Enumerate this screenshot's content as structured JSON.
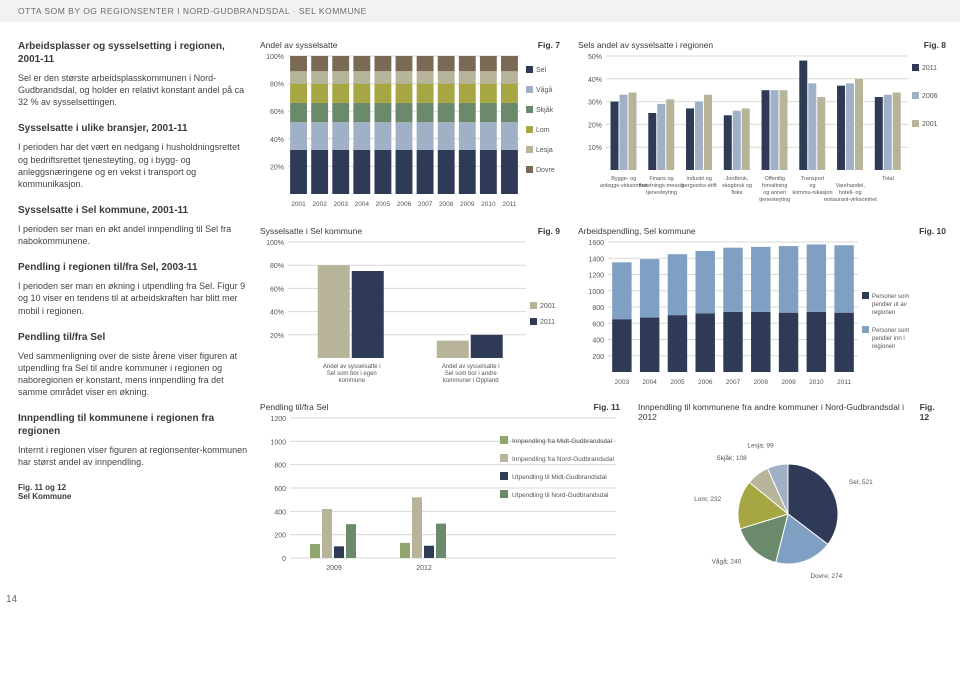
{
  "topbar": "OTTA SOM BY OG REGIONSENTER I NORD-GUDBRANDSDAL · SEL KOMMUNE",
  "pagenum": "14",
  "left": {
    "h1": "Arbeidsplasser og sysselsetting i regionen, 2001-11",
    "p1": "Sel er den største arbeidsplasskommunen i Nord-Gudbrandsdal, og holder en relativt konstant andel på ca 32 % av sysselsettingen.",
    "h2": "Sysselsatte i ulike bransjer, 2001-11",
    "p2": "I perioden har det vært en nedgang i husholdningsrettet og bedriftsrettet tjenesteyting, og i bygg- og anleggsnæringene og en vekst i transport og kommunikasjon.",
    "h3": "Sysselsatte i Sel kommune, 2001-11",
    "p3": "I perioden ser man en økt andel innpendling til Sel fra nabokommunene.",
    "h4": "Pendling i regionen til/fra Sel, 2003-11",
    "p4": "I perioden ser man en økning i utpendling fra Sel. Figur 9 og 10 viser en tendens til at arbeidskraften har blitt mer mobil i regionen.",
    "h5": "Pendling til/fra Sel",
    "p5": "Ved sammenligning over de siste årene viser figuren at utpendling fra Sel til andre kommuner i regionen og naboregionen er konstant, mens innpendling fra det samme området viser en økning.",
    "h6": "Innpendling til kommunene i regionen fra regionen",
    "p6": "Internt i regionen viser figuren at regionsenter-kommunen har størst andel av innpendling.",
    "foot": "Fig. 11 og 12\nSel Kommune"
  },
  "colors": {
    "sel": "#2f3a57",
    "vaga": "#9fb0c7",
    "skjak": "#6b8a6b",
    "lom": "#a6a642",
    "lesja": "#b7b49a",
    "dovre": "#7a6a53",
    "grid": "#d9d9d7",
    "y2011": "#2f3a57",
    "y2006": "#9fb0c7",
    "y2001": "#b7b49a",
    "pend_out": "#2f3a57",
    "pend_in": "#7fa0c2",
    "bar_in_midt": "#8fa66f",
    "bar_in_nord": "#b7b49a",
    "bar_out_midt": "#2f3a57",
    "bar_out_nord": "#6b8a6b"
  },
  "fig7": {
    "title": "Andel av sysselsatte",
    "fig": "Fig. 7",
    "years": [
      "2001",
      "2002",
      "2003",
      "2004",
      "2005",
      "2006",
      "2007",
      "2008",
      "2009",
      "2010",
      "2011"
    ],
    "yticks": [
      "20%",
      "40%",
      "60%",
      "80%",
      "100%"
    ],
    "legend": [
      "Sel",
      "Vågå",
      "Skjåk",
      "Lom",
      "Lesja",
      "Dovre"
    ],
    "stacks": [
      [
        32,
        20,
        14,
        14,
        9,
        11
      ],
      [
        32,
        20,
        14,
        14,
        9,
        11
      ],
      [
        32,
        20,
        14,
        14,
        9,
        11
      ],
      [
        32,
        20,
        14,
        14,
        9,
        11
      ],
      [
        32,
        20,
        14,
        14,
        9,
        11
      ],
      [
        32,
        20,
        14,
        14,
        9,
        11
      ],
      [
        32,
        20,
        14,
        14,
        9,
        11
      ],
      [
        32,
        20,
        14,
        14,
        9,
        11
      ],
      [
        32,
        20,
        14,
        14,
        9,
        11
      ],
      [
        32,
        20,
        14,
        14,
        9,
        11
      ],
      [
        32,
        20,
        14,
        14,
        9,
        11
      ]
    ]
  },
  "fig8": {
    "title": "Sels andel av sysselsatte i regionen",
    "fig": "Fig. 8",
    "cats": [
      "Bygge- og anleggs-virksomhet",
      "Finans og forretnings-messig tjenesteyting",
      "industri og bergverks-drift",
      "Jordbruk, skogbruk og fiske",
      "Offentlig forvaltning og annen tjenesteyting",
      "Transport og kommu-nikasjon",
      "Varehandel, hotell- og restaurant-virksomhet",
      "Total"
    ],
    "yticks": [
      "10%",
      "20%",
      "30%",
      "40%",
      "50%"
    ],
    "legend": [
      "2011",
      "2006",
      "2001"
    ],
    "series": {
      "2011": [
        30,
        25,
        27,
        24,
        35,
        48,
        37,
        32
      ],
      "2006": [
        33,
        29,
        30,
        26,
        35,
        38,
        38,
        33
      ],
      "2001": [
        34,
        31,
        33,
        27,
        35,
        32,
        40,
        34
      ]
    }
  },
  "fig9": {
    "title": "Sysselsatte i Sel kommune",
    "fig": "Fig. 9",
    "cats": [
      "Andel av sysselsatte i Sel som bor i egen kommune",
      "Andel av sysselsatte i Sel som bor i andre kommuner i Oppland"
    ],
    "yticks": [
      "20%",
      "40%",
      "60%",
      "80%",
      "100%"
    ],
    "legend": [
      "2001",
      "2011"
    ],
    "series": {
      "2001": [
        80,
        15
      ],
      "2011": [
        75,
        20
      ]
    }
  },
  "fig10": {
    "title": "Arbeidspendling, Sel kommune",
    "fig": "Fig. 10",
    "years": [
      "2003",
      "2004",
      "2005",
      "2006",
      "2007",
      "2008",
      "2009",
      "2010",
      "2011"
    ],
    "yticks": [
      "200",
      "400",
      "600",
      "800",
      "1000",
      "1200",
      "1400",
      "1600"
    ],
    "legend": [
      "Personer som pendler ut av regionen",
      "Personer som pendler inn i regionen"
    ],
    "stacks": [
      [
        650,
        700
      ],
      [
        670,
        720
      ],
      [
        700,
        750
      ],
      [
        720,
        770
      ],
      [
        740,
        790
      ],
      [
        740,
        800
      ],
      [
        730,
        820
      ],
      [
        740,
        830
      ],
      [
        730,
        830
      ]
    ]
  },
  "fig11": {
    "title": "Pendling til/fra Sel",
    "fig": "Fig. 11",
    "years": [
      "2009",
      "2012"
    ],
    "yticks": [
      "0",
      "200",
      "400",
      "600",
      "800",
      "1000",
      "1200"
    ],
    "legend": [
      "Innpendling fra Midt-Gudbrandsdal",
      "Innpendling fra Nord-Gudbrandsdal",
      "Utpendling til Midt-Gudbrandsdal",
      "Utpendling til Nord-Gudbrandsdal"
    ],
    "series": [
      [
        120,
        420,
        100,
        290
      ],
      [
        130,
        520,
        105,
        295
      ]
    ]
  },
  "fig12": {
    "title": "Innpendling til kommunene fra andre kommuner i Nord-Gudbrandsdal i 2012",
    "fig": "Fig. 12",
    "slices": [
      {
        "label": "Sel; 521",
        "v": 521,
        "c": "#2f3a57"
      },
      {
        "label": "Dovre; 274",
        "v": 274,
        "c": "#7fa0c2"
      },
      {
        "label": "Vågå; 240",
        "v": 240,
        "c": "#6b8a6b"
      },
      {
        "label": "Lom; 232",
        "v": 232,
        "c": "#a6a642"
      },
      {
        "label": "Skjåk; 108",
        "v": 108,
        "c": "#b7b49a"
      },
      {
        "label": "Lesja; 99",
        "v": 99,
        "c": "#9fb0c7"
      }
    ]
  }
}
